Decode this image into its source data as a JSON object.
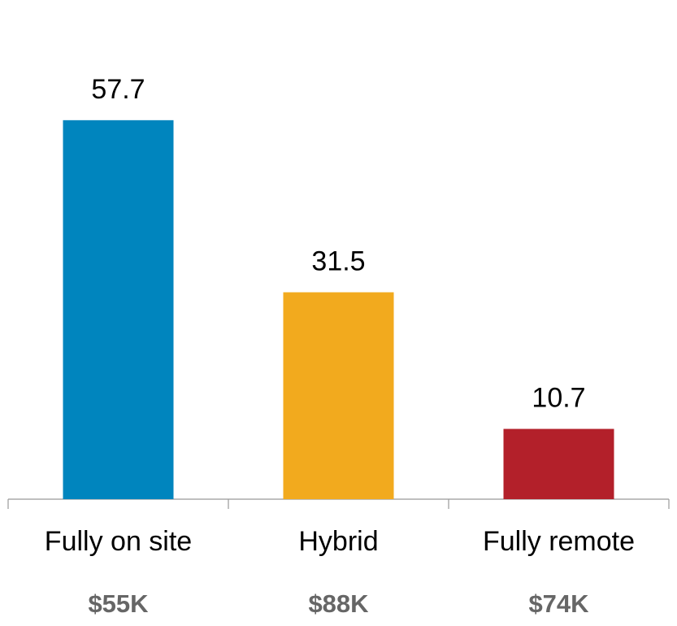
{
  "chart_data": {
    "type": "bar",
    "categories": [
      "Fully on site",
      "Hybrid",
      "Fully remote"
    ],
    "sublabels": [
      "$55K",
      "$88K",
      "$74K"
    ],
    "values": [
      57.7,
      31.5,
      10.7
    ],
    "colors": [
      "#0085be",
      "#f2aa1e",
      "#b3202a"
    ],
    "ylim": [
      0,
      76
    ]
  }
}
